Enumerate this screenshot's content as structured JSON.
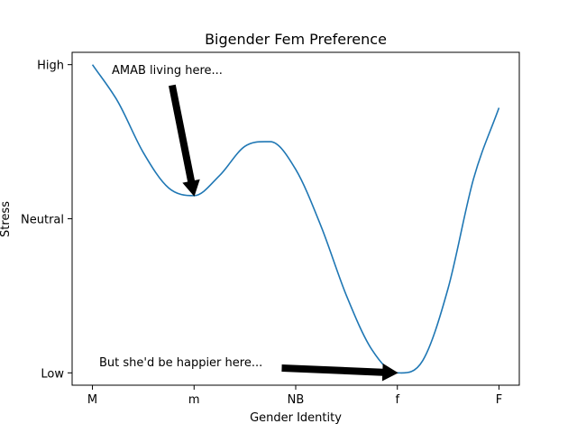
{
  "chart_data": {
    "type": "line",
    "title": "Bigender Fem Preference",
    "xlabel": "Gender Identity",
    "ylabel": "Stress",
    "categories": [
      "M",
      "m",
      "NB",
      "f",
      "F"
    ],
    "xlim": [
      -0.2,
      4.2
    ],
    "ylim": [
      -0.08,
      2.08
    ],
    "y_ticks": [
      {
        "value": 0,
        "label": "Low"
      },
      {
        "value": 1,
        "label": "Neutral"
      },
      {
        "value": 2,
        "label": "High"
      }
    ],
    "grid": false,
    "series": [
      {
        "color": "#1f77b4",
        "x": [
          0,
          0.25,
          0.5,
          0.75,
          1.0,
          1.25,
          1.5,
          1.75,
          2.0,
          2.25,
          2.5,
          2.75,
          3.0,
          3.25,
          3.5,
          3.75,
          4.0
        ],
        "y": [
          2.0,
          1.76,
          1.43,
          1.2,
          1.15,
          1.28,
          1.47,
          1.5,
          1.32,
          0.95,
          0.5,
          0.15,
          0.0,
          0.08,
          0.55,
          1.26,
          1.72
        ]
      }
    ],
    "annotations": [
      {
        "text": "AMAB living here...",
        "target": [
          1,
          1.15
        ]
      },
      {
        "text": "But she'd be happier here...",
        "target": [
          3,
          0.0
        ]
      }
    ]
  }
}
